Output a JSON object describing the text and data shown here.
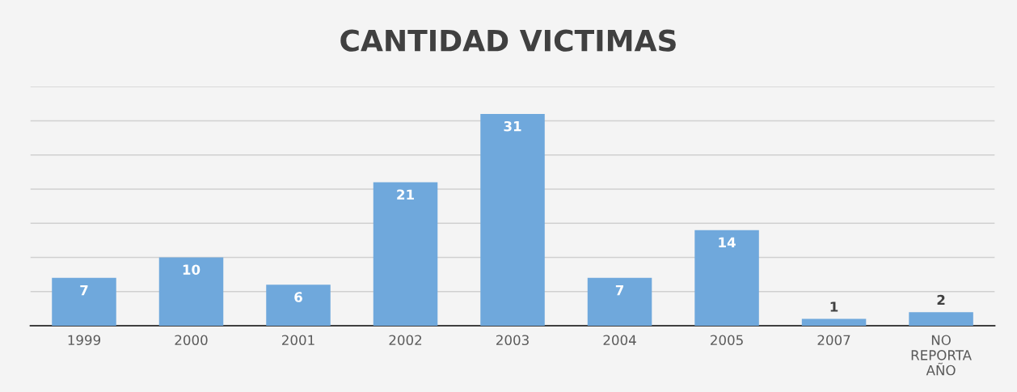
{
  "chart_data": {
    "type": "bar",
    "title": "CANTIDAD VICTIMAS",
    "categories": [
      "1999",
      "2000",
      "2001",
      "2002",
      "2003",
      "2004",
      "2005",
      "2007",
      "NO REPORTA AÑO"
    ],
    "values": [
      7,
      10,
      6,
      21,
      31,
      7,
      14,
      1,
      2
    ],
    "color": "#6fa8dc",
    "data_labels": true,
    "ylim": [
      0,
      35
    ],
    "yticks": [
      {
        "value": 0,
        "label": null
      },
      {
        "value": 5,
        "label": null
      },
      {
        "value": 10,
        "label": null
      },
      {
        "value": 15,
        "label": null
      },
      {
        "value": 20,
        "label": null
      },
      {
        "value": 25,
        "label": null
      },
      {
        "value": 30,
        "label": null
      },
      {
        "value": 35,
        "label": null
      }
    ],
    "tick_labels": "x",
    "grid": "y"
  }
}
